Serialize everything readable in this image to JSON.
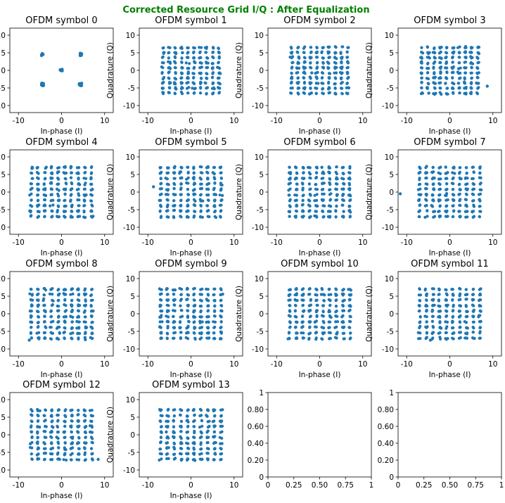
{
  "figure": {
    "suptitle": "Corrected Resource Grid I/Q : After Equalization",
    "suptitle_color": "#008000",
    "marker_color": "#1f77b4"
  },
  "chart_data": [
    {
      "type": "scatter",
      "title": "OFDM symbol 0",
      "xlabel": "In-phase (I)",
      "ylabel": "Quadrature (Q)",
      "xlim": [
        -12,
        12
      ],
      "ylim": [
        -12,
        12
      ],
      "xticks": [
        -10,
        0,
        10
      ],
      "yticks": [
        -10,
        -5,
        0,
        5,
        10
      ],
      "constellation": "QPSK",
      "points": [
        [
          -4.5,
          4.5
        ],
        [
          4.5,
          4.5
        ],
        [
          0,
          0
        ],
        [
          -4.5,
          -4
        ],
        [
          4.5,
          -4
        ]
      ],
      "outliers": []
    },
    {
      "type": "scatter",
      "title": "OFDM symbol 1",
      "xlabel": "In-phase (I)",
      "ylabel": "Quadrature (Q)",
      "xlim": [
        -12,
        12
      ],
      "ylim": [
        -12,
        12
      ],
      "xticks": [
        -10,
        0,
        10
      ],
      "yticks": [
        -10,
        -5,
        0,
        5,
        10
      ],
      "constellation": "QAM-grid",
      "grid_range": [
        -6.5,
        6.5
      ],
      "outliers": []
    },
    {
      "type": "scatter",
      "title": "OFDM symbol 2",
      "xlabel": "In-phase (I)",
      "ylabel": "Quadrature (Q)",
      "xlim": [
        -12,
        12
      ],
      "ylim": [
        -12,
        12
      ],
      "xticks": [
        -10,
        0,
        10
      ],
      "yticks": [
        -10,
        -5,
        0,
        5,
        10
      ],
      "constellation": "QAM-grid",
      "grid_range": [
        -6.5,
        6.5
      ],
      "outliers": []
    },
    {
      "type": "scatter",
      "title": "OFDM symbol 3",
      "xlabel": "In-phase (I)",
      "ylabel": "Quadrature (Q)",
      "xlim": [
        -12,
        12
      ],
      "ylim": [
        -12,
        12
      ],
      "xticks": [
        -10,
        0,
        10
      ],
      "yticks": [
        -10,
        -5,
        0,
        5,
        10
      ],
      "constellation": "QAM-grid",
      "grid_range": [
        -6.5,
        6.5
      ],
      "outliers": [
        [
          8.7,
          -4.5
        ]
      ]
    },
    {
      "type": "scatter",
      "title": "OFDM symbol 4",
      "xlabel": "In-phase (I)",
      "ylabel": "Quadrature (Q)",
      "xlim": [
        -12,
        12
      ],
      "ylim": [
        -12,
        12
      ],
      "xticks": [
        -10,
        0,
        10
      ],
      "yticks": [
        -10,
        -5,
        0,
        5,
        10
      ],
      "constellation": "QAM-grid",
      "grid_range": [
        -7,
        7
      ],
      "outliers": []
    },
    {
      "type": "scatter",
      "title": "OFDM symbol 5",
      "xlabel": "In-phase (I)",
      "ylabel": "Quadrature (Q)",
      "xlim": [
        -12,
        12
      ],
      "ylim": [
        -12,
        12
      ],
      "xticks": [
        -10,
        0,
        10
      ],
      "yticks": [
        -10,
        -5,
        0,
        5,
        10
      ],
      "constellation": "QAM-grid",
      "grid_range": [
        -7,
        7
      ],
      "outliers": [
        [
          -8.7,
          1.5
        ]
      ]
    },
    {
      "type": "scatter",
      "title": "OFDM symbol 6",
      "xlabel": "In-phase (I)",
      "ylabel": "Quadrature (Q)",
      "xlim": [
        -12,
        12
      ],
      "ylim": [
        -12,
        12
      ],
      "xticks": [
        -10,
        0,
        10
      ],
      "yticks": [
        -10,
        -5,
        0,
        5,
        10
      ],
      "constellation": "QAM-grid",
      "grid_range": [
        -7,
        7
      ],
      "outliers": []
    },
    {
      "type": "scatter",
      "title": "OFDM symbol 7",
      "xlabel": "In-phase (I)",
      "ylabel": "Quadrature (Q)",
      "xlim": [
        -12,
        12
      ],
      "ylim": [
        -12,
        12
      ],
      "xticks": [
        -10,
        0,
        10
      ],
      "yticks": [
        -10,
        -5,
        0,
        5,
        10
      ],
      "constellation": "QAM-grid",
      "grid_range": [
        -7,
        7
      ],
      "outliers": [
        [
          -11.5,
          -0.5
        ]
      ]
    },
    {
      "type": "scatter",
      "title": "OFDM symbol 8",
      "xlabel": "In-phase (I)",
      "ylabel": "Quadrature (Q)",
      "xlim": [
        -12,
        12
      ],
      "ylim": [
        -12,
        12
      ],
      "xticks": [
        -10,
        0,
        10
      ],
      "yticks": [
        -10,
        -5,
        0,
        5,
        10
      ],
      "constellation": "QAM-grid",
      "grid_range": [
        -7,
        7
      ],
      "outliers": [
        [
          -7.5,
          -7.5
        ]
      ]
    },
    {
      "type": "scatter",
      "title": "OFDM symbol 9",
      "xlabel": "In-phase (I)",
      "ylabel": "Quadrature (Q)",
      "xlim": [
        -12,
        12
      ],
      "ylim": [
        -12,
        12
      ],
      "xticks": [
        -10,
        0,
        10
      ],
      "yticks": [
        -10,
        -5,
        0,
        5,
        10
      ],
      "constellation": "QAM-grid",
      "grid_range": [
        -7,
        7
      ],
      "outliers": []
    },
    {
      "type": "scatter",
      "title": "OFDM symbol 10",
      "xlabel": "In-phase (I)",
      "ylabel": "Quadrature (Q)",
      "xlim": [
        -12,
        12
      ],
      "ylim": [
        -12,
        12
      ],
      "xticks": [
        -10,
        0,
        10
      ],
      "yticks": [
        -10,
        -5,
        0,
        5,
        10
      ],
      "constellation": "QAM-grid",
      "grid_range": [
        -7,
        7
      ],
      "outliers": []
    },
    {
      "type": "scatter",
      "title": "OFDM symbol 11",
      "xlabel": "In-phase (I)",
      "ylabel": "Quadrature (Q)",
      "xlim": [
        -12,
        12
      ],
      "ylim": [
        -12,
        12
      ],
      "xticks": [
        -10,
        0,
        10
      ],
      "yticks": [
        -10,
        -5,
        0,
        5,
        10
      ],
      "constellation": "QAM-grid",
      "grid_range": [
        -7,
        7
      ],
      "outliers": [
        [
          -4.5,
          -7.5
        ]
      ]
    },
    {
      "type": "scatter",
      "title": "OFDM symbol 12",
      "xlabel": "In-phase (I)",
      "ylabel": "Quadrature (Q)",
      "xlim": [
        -12,
        12
      ],
      "ylim": [
        -12,
        12
      ],
      "xticks": [
        -10,
        0,
        10
      ],
      "yticks": [
        -10,
        -5,
        0,
        5,
        10
      ],
      "constellation": "QAM-grid",
      "grid_range": [
        -7,
        7
      ],
      "outliers": [
        [
          8.5,
          -7
        ]
      ]
    },
    {
      "type": "scatter",
      "title": "OFDM symbol 13",
      "xlabel": "In-phase (I)",
      "ylabel": "Quadrature (Q)",
      "xlim": [
        -12,
        12
      ],
      "ylim": [
        -12,
        12
      ],
      "xticks": [
        -10,
        0,
        10
      ],
      "yticks": [
        -10,
        -5,
        0,
        5,
        10
      ],
      "constellation": "QAM-grid",
      "grid_range": [
        -7,
        7
      ],
      "outliers": []
    },
    {
      "type": "empty",
      "title": "",
      "xlim": [
        0,
        1
      ],
      "ylim": [
        0,
        1
      ],
      "xticks": [
        0.0,
        0.25,
        0.5,
        0.75,
        1.0
      ],
      "yticks": [
        0.0,
        0.2,
        0.4,
        0.6,
        0.8,
        1.0
      ]
    },
    {
      "type": "empty",
      "title": "",
      "xlim": [
        0,
        1
      ],
      "ylim": [
        0,
        1
      ],
      "xticks": [
        0.0,
        0.25,
        0.5,
        0.75,
        1.0
      ],
      "yticks": [
        0.0,
        0.2,
        0.4,
        0.6,
        0.8,
        1.0
      ]
    }
  ]
}
